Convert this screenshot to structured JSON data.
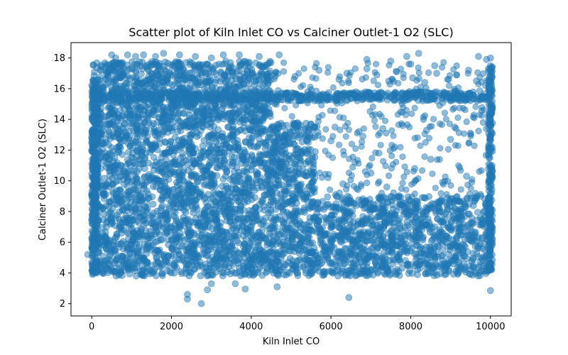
{
  "chart_data": {
    "type": "scatter",
    "title": "Scatter plot of Kiln Inlet CO vs Calciner Outlet-1 O2 (SLC)",
    "xlabel": "Kiln Inlet CO",
    "ylabel": "Calciner Outlet-1 O2 (SLC)",
    "xlim": [
      -520,
      10520
    ],
    "ylim": [
      1.2,
      19.0
    ],
    "x_ticks": [
      0,
      2000,
      4000,
      6000,
      8000,
      10000
    ],
    "x_tick_labels": [
      "0",
      "2000",
      "4000",
      "6000",
      "8000",
      "10000"
    ],
    "y_ticks": [
      2,
      4,
      6,
      8,
      10,
      12,
      14,
      16,
      18
    ],
    "y_tick_labels": [
      "2",
      "4",
      "6",
      "8",
      "10",
      "12",
      "14",
      "16",
      "18"
    ],
    "grid": false,
    "legend": "none",
    "marker_color": "#1f77b4",
    "marker_alpha": 0.5,
    "series": [
      {
        "x": [
          -100,
          2400,
          2400,
          2750,
          2900,
          3000,
          3600,
          3850,
          4650,
          6450,
          10000,
          500,
          600,
          900,
          1100,
          1300,
          1600,
          1800,
          2200,
          2600,
          3000,
          3300,
          3700,
          4200,
          4700,
          6900,
          7500,
          7900,
          8000,
          8200,
          8600,
          9700,
          10000,
          9900,
          300,
          700,
          1200,
          2500,
          3500,
          5000,
          5400,
          5900,
          6500,
          7100,
          7700,
          8300,
          9300,
          9800,
          200,
          800,
          1500,
          2800,
          4300,
          5500,
          6100,
          6700,
          7300,
          7800,
          8400,
          9100,
          9500,
          9900,
          0,
          100,
          50,
          80,
          20,
          150,
          10000,
          10000,
          10000,
          10000,
          10000,
          5200,
          5600,
          6000,
          6300,
          6600,
          6800,
          7000,
          7200,
          7400,
          7600,
          8100,
          8500,
          8800,
          9000,
          9400,
          5100,
          5700,
          6200,
          6400,
          6900,
          7150,
          7450,
          7650,
          8050,
          8350,
          8650,
          8950,
          9150,
          9450,
          9650,
          300,
          4400,
          4900,
          5300,
          3200,
          3900,
          2100,
          1700
        ],
        "y": [
          5.2,
          2.3,
          2.6,
          2.0,
          2.9,
          3.3,
          3.3,
          2.95,
          3.1,
          2.4,
          2.85,
          18.2,
          18.0,
          18.2,
          18.1,
          18.2,
          18.1,
          18.3,
          18.2,
          18.1,
          18.0,
          18.2,
          18.2,
          18.1,
          18.2,
          17.9,
          17.8,
          18.1,
          17.6,
          18.3,
          17.5,
          18.1,
          18.0,
          17.9,
          15.4,
          15.5,
          15.4,
          15.6,
          15.5,
          15.4,
          15.5,
          15.6,
          15.4,
          15.5,
          15.4,
          15.5,
          15.4,
          15.5,
          13.5,
          13.4,
          13.6,
          13.5,
          13.4,
          13.7,
          13.5,
          13.2,
          13.4,
          13.6,
          13.3,
          13.5,
          13.1,
          13.4,
          12.0,
          10.0,
          8.0,
          6.5,
          9.0,
          11.0,
          16.0,
          14.0,
          12.0,
          10.0,
          8.0,
          11.5,
          10.2,
          12.6,
          9.8,
          11.2,
          12.9,
          10.5,
          11.8,
          9.6,
          12.2,
          10.8,
          11.4,
          9.9,
          12.7,
          10.3,
          16.8,
          17.2,
          16.6,
          17.0,
          17.3,
          16.9,
          16.5,
          17.1,
          16.7,
          16.4,
          17.0,
          16.6,
          16.9,
          17.2,
          16.5,
          4.5,
          5.8,
          7.0,
          6.2,
          4.8,
          6.9,
          7.2,
          5.5
        ]
      }
    ]
  }
}
